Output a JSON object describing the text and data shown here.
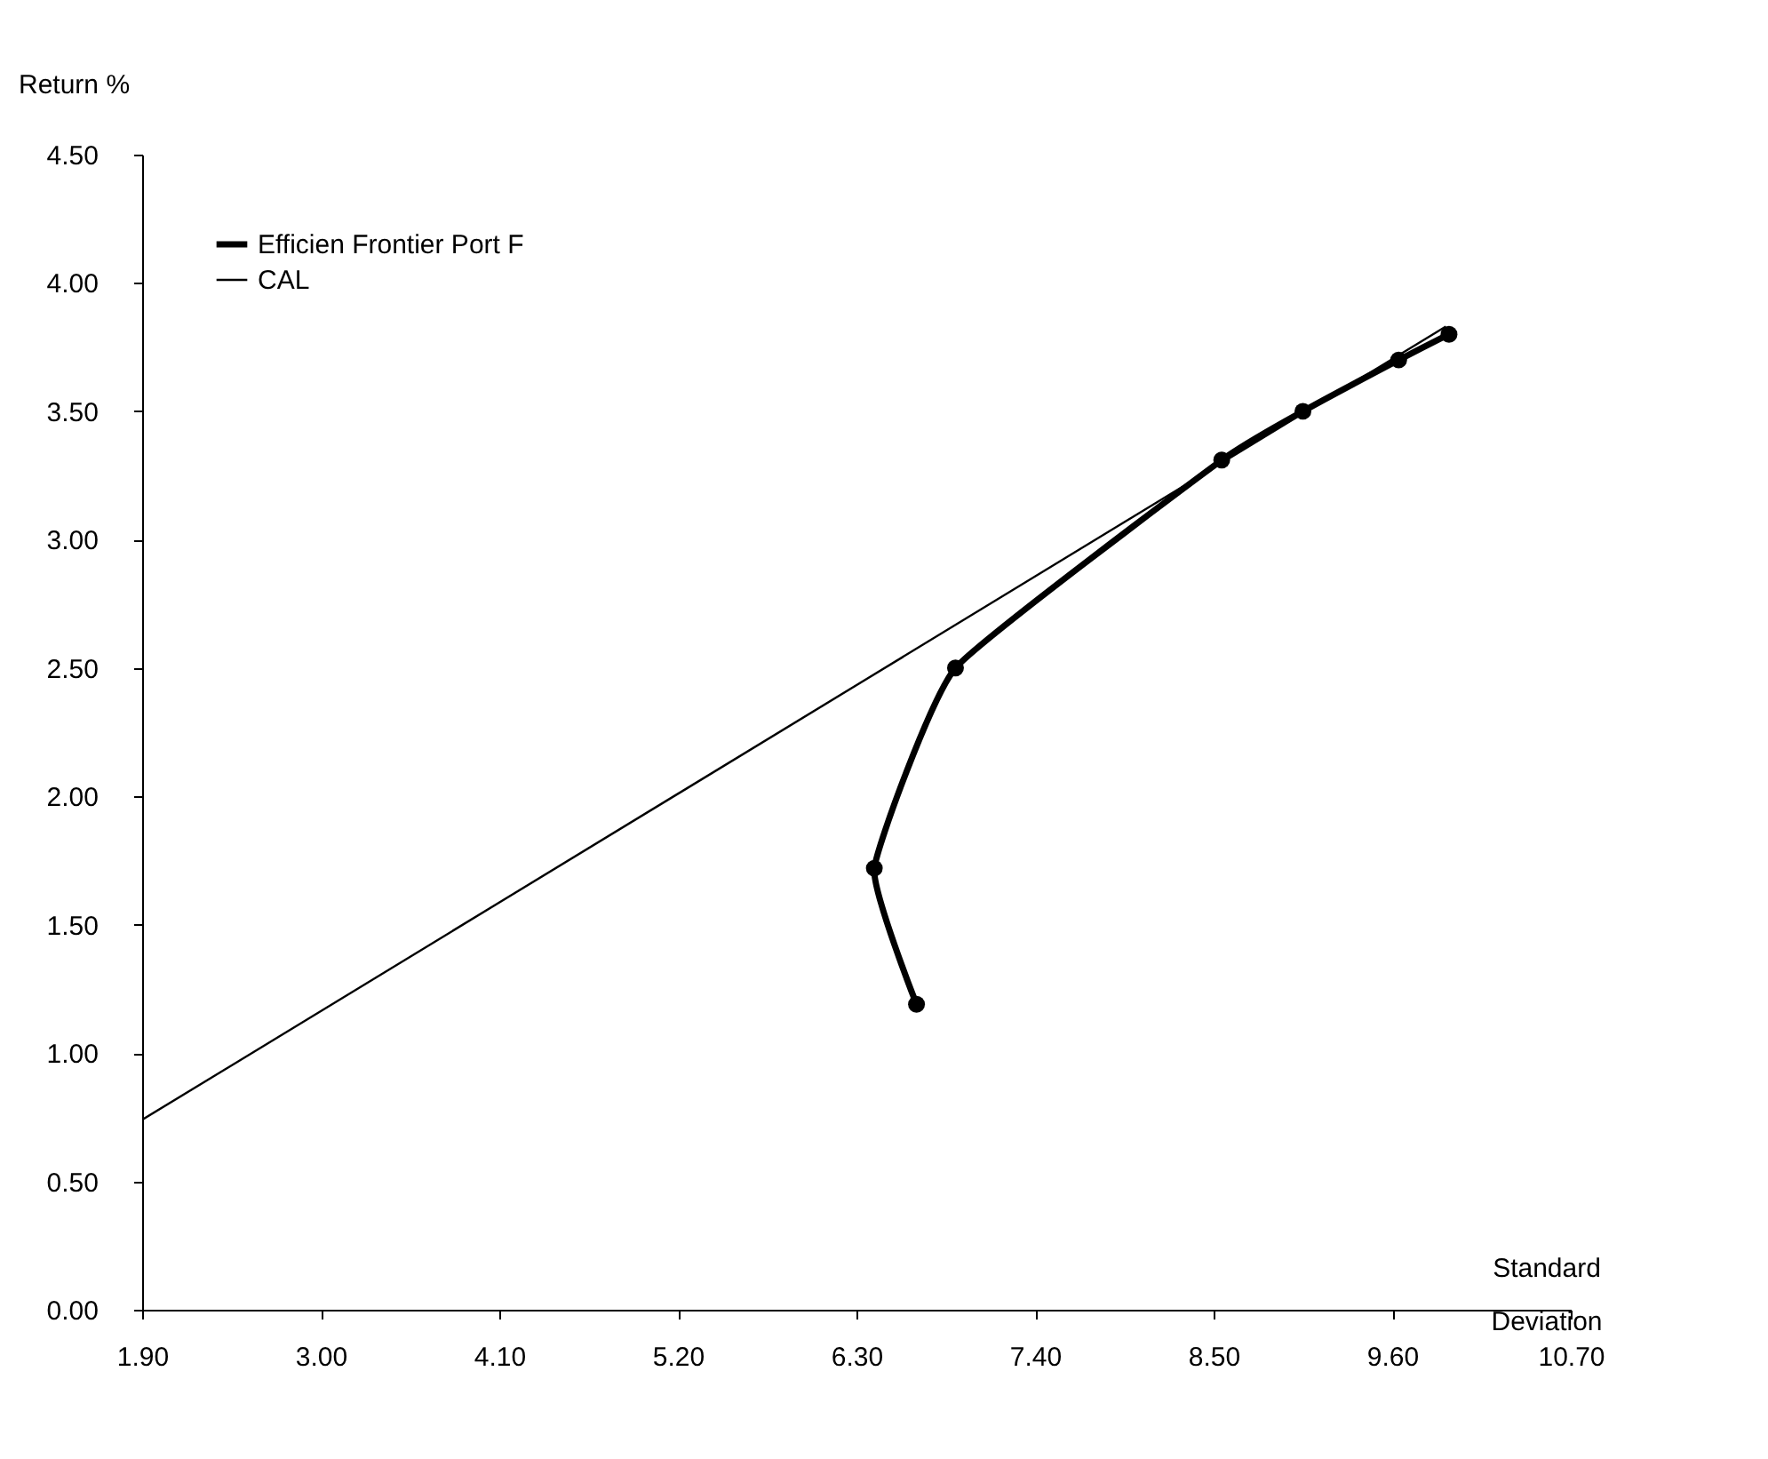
{
  "chart_data": {
    "type": "line",
    "xlabel": "Standard Deviation",
    "ylabel": "Return %",
    "xlim": [
      1.9,
      10.7
    ],
    "xticks": [
      {
        "value": 1.9,
        "label": "1.90"
      },
      {
        "value": 3.0,
        "label": "3.00"
      },
      {
        "value": 4.1,
        "label": "4.10"
      },
      {
        "value": 5.2,
        "label": "5.20"
      },
      {
        "value": 6.3,
        "label": "6.30"
      },
      {
        "value": 7.4,
        "label": "7.40"
      },
      {
        "value": 8.5,
        "label": "8.50"
      },
      {
        "value": 9.6,
        "label": "9.60"
      },
      {
        "value": 10.7,
        "label": "10.70"
      }
    ],
    "ylim": [
      0,
      4.5
    ],
    "yticks": [
      {
        "value": 0,
        "label": "0.00"
      },
      {
        "value": 0.5,
        "label": "0.50"
      },
      {
        "value": 1.0,
        "label": "1.00"
      },
      {
        "value": 1.5,
        "label": "1.50"
      },
      {
        "value": 2.0,
        "label": "2.00"
      },
      {
        "value": 2.5,
        "label": "2.50"
      },
      {
        "value": 3.0,
        "label": "3.00"
      },
      {
        "value": 3.5,
        "label": "3.50"
      },
      {
        "value": 4.0,
        "label": "4.00"
      },
      {
        "value": 4.5,
        "label": "4.50"
      }
    ],
    "grid": false,
    "legend": "top left",
    "series": [
      {
        "name": "Efficien Frontier Port F",
        "color": "#000000",
        "marker": "circle",
        "x": [
          6.67,
          6.41,
          6.91,
          8.55,
          9.05,
          9.64,
          9.95
        ],
        "values": [
          1.19,
          1.72,
          2.5,
          3.31,
          3.5,
          3.7,
          3.8
        ]
      },
      {
        "name": "CAL",
        "color": "#000000",
        "marker": "none",
        "x": [
          1.9,
          9.93
        ],
        "values": [
          0.74,
          3.83
        ]
      }
    ]
  }
}
